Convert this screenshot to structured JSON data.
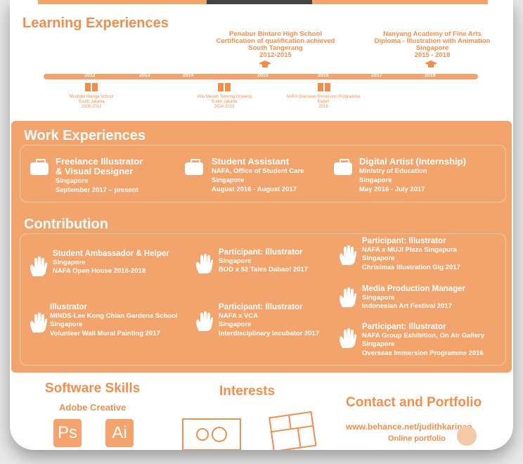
{
  "learning": {
    "title": "Learning Experiences",
    "years": [
      "2012",
      "2013",
      "2014",
      "2015",
      "2016",
      "2017",
      "2018"
    ],
    "top_items": [
      {
        "school": "Penabur Bintaro High School",
        "detail": "Certification of qualification achieved",
        "place": "South Tangerang",
        "years": "2012-2015"
      },
      {
        "school": "Nanyang Academy of Fine Arts",
        "detail": "Diploma - Illustration with Animation",
        "place": "Singapore",
        "years": "2015 - 2018"
      }
    ],
    "bottom_items": [
      {
        "name": "Moshibo Manga School",
        "place": "South Jakarta",
        "years": "2009-2012"
      },
      {
        "name": "Villa Mesah Tutoring Drawing",
        "place": "South Jakarta",
        "years": "2014-2015"
      },
      {
        "name": "NAFA Overseas Immersion Programme",
        "place": "Klaten",
        "years": "2016"
      }
    ]
  },
  "work": {
    "title": "Work Experiences",
    "items": [
      {
        "title1": "Freelance Illustrator",
        "title2": "& Visual Designer",
        "org": "",
        "place": "Singapore",
        "dates": "September 2017 – present"
      },
      {
        "title1": "Student Assistant",
        "title2": "",
        "org": "NAFA, Office of Student Care",
        "place": "Singapore",
        "dates": "August 2016 - August 2017"
      },
      {
        "title1": "Digital Artist (Internship)",
        "title2": "",
        "org": "Ministry of Education",
        "place": "Singapore",
        "dates": "May 2016 - July 2017"
      }
    ]
  },
  "contribution": {
    "title": "Contribution",
    "items": [
      {
        "title": "Student Ambassador & Helper",
        "l1": "Singapore",
        "l2": "NAFA Open House 2016-2018",
        "l3": ""
      },
      {
        "title": "Illustrator",
        "l1": "MINDS-Lee Kong Chian Gardens School",
        "l2": "Singapore",
        "l3": "Volunteer Wall Mural Painting 2017"
      },
      {
        "title": "Participant: Illustrator",
        "l1": "Singapore",
        "l2": "BOD x 52 Tales Dabao! 2017",
        "l3": ""
      },
      {
        "title": "Participant: Illustrator",
        "l1": "NAFA x VCA",
        "l2": "Singapore",
        "l3": "Interdisciplinary Incubator 2017"
      },
      {
        "title": "Participant: Illustrator",
        "l1": "NAFA x MUJI Plaza Singapura",
        "l2": "Singapore",
        "l3": "Christmas Illustration Gig 2017"
      },
      {
        "title": "Media Production Manager",
        "l1": "Singapore",
        "l2": "Indonesian Art Festival 2017",
        "l3": ""
      },
      {
        "title": "Participant: Illustrator",
        "l1": "NAFA Group Exhibition, On Air Gallery",
        "l2": "Singapore",
        "l3": "Overseas Immersion Programme 2016"
      }
    ]
  },
  "skills": {
    "title": "Software Skills",
    "subtitle": "Adobe Creative",
    "apps": [
      "Ps",
      "Ai"
    ]
  },
  "interests": {
    "title": "Interests"
  },
  "contact": {
    "title": "Contact and Portfolio",
    "link": "www.behance.net/judithkarinao",
    "label": "Online portfolio"
  },
  "colors": {
    "accent": "#f2a46c",
    "accent_text": "#ef8f4d"
  }
}
